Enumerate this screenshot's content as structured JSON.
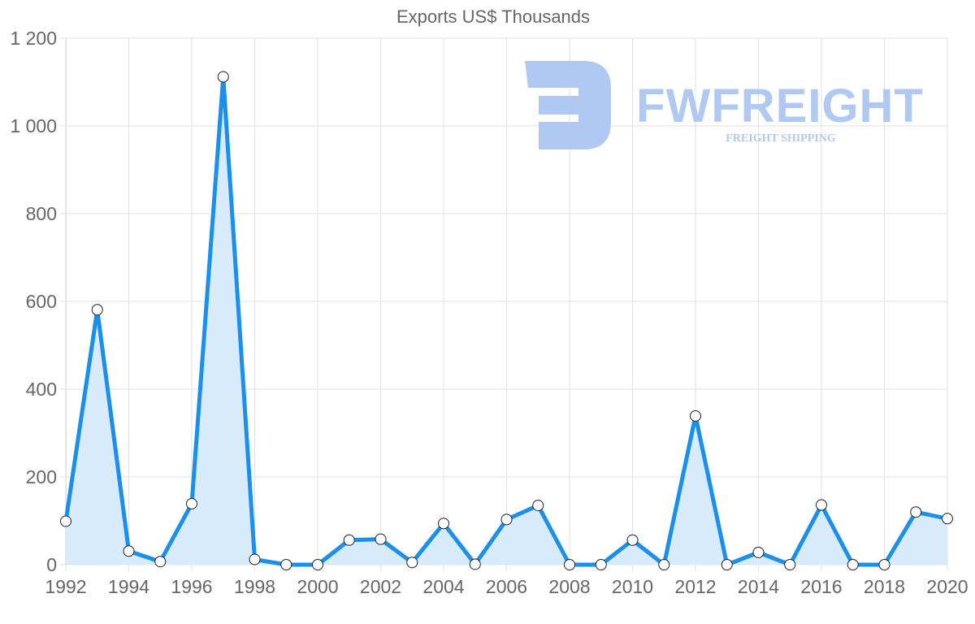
{
  "chart_data": {
    "type": "area",
    "title": "Exports US$ Thousands",
    "xlabel": "",
    "ylabel": "",
    "x": [
      1992,
      1993,
      1994,
      1995,
      1996,
      1997,
      1998,
      1999,
      2000,
      2001,
      2002,
      2003,
      2004,
      2005,
      2006,
      2007,
      2008,
      2009,
      2010,
      2011,
      2012,
      2013,
      2014,
      2015,
      2016,
      2017,
      2018,
      2019,
      2020
    ],
    "series": [
      {
        "name": "Exports US$ Thousands",
        "values": [
          99,
          581,
          31,
          7,
          139,
          1112,
          12,
          0,
          0,
          56,
          58,
          5,
          94,
          1,
          103,
          135,
          0,
          0,
          56,
          0,
          339,
          0,
          28,
          0,
          136,
          0,
          0,
          120,
          105
        ]
      }
    ],
    "x_tick_labels": [
      "1992",
      "1994",
      "1996",
      "1998",
      "2000",
      "2002",
      "2004",
      "2006",
      "2008",
      "2010",
      "2012",
      "2014",
      "2016",
      "2018",
      "2020"
    ],
    "y_tick_labels": [
      "0",
      "200",
      "400",
      "600",
      "800",
      "1 000",
      "1 200"
    ],
    "y_ticks": [
      0,
      200,
      400,
      600,
      800,
      1000,
      1200
    ],
    "ylim": [
      0,
      1200
    ],
    "xlim": [
      1992,
      2020
    ],
    "grid": true,
    "legend": "none",
    "colors": {
      "line": "#1a8fec",
      "fill": "#d8ebfb",
      "marker_fill": "#ffffff",
      "marker_stroke": "#222222",
      "grid": "#e2e2e2",
      "text": "#666666"
    }
  },
  "watermark": {
    "brand": "FWFREIGHT",
    "tagline": "FREIGHT SHIPPING",
    "color": "#b0c9f2"
  }
}
